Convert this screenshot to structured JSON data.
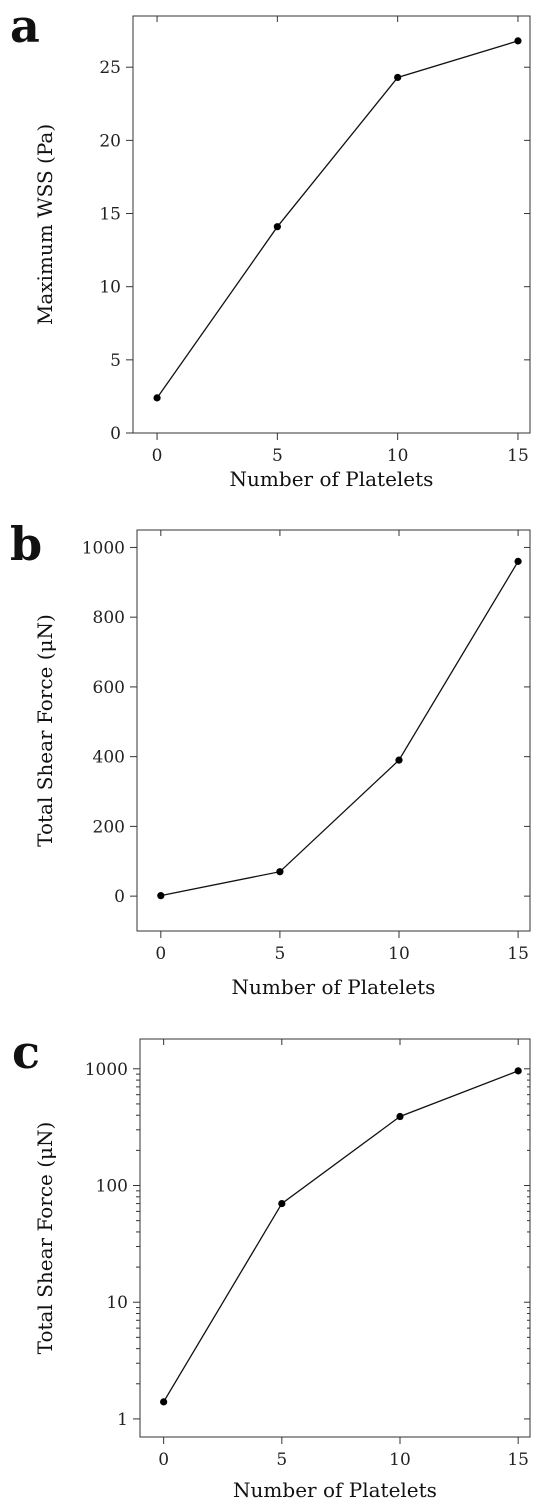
{
  "chart_data": [
    {
      "type": "line",
      "panel_label": "a",
      "xlabel": "Number of Platelets",
      "ylabel": "Maximum WSS (Pa)",
      "x": [
        0,
        5,
        10,
        15
      ],
      "y": [
        2.4,
        14.1,
        24.3,
        26.8
      ],
      "xlim": [
        -1,
        15.5
      ],
      "ylim": [
        0,
        28.5
      ],
      "xticks": [
        0,
        5,
        10,
        15
      ],
      "yticks": [
        0,
        5,
        10,
        15,
        20,
        25
      ],
      "xtick_labels": [
        "0",
        "5",
        "10",
        "15"
      ],
      "ytick_labels": [
        "0",
        "5",
        "10",
        "15",
        "20",
        "25"
      ],
      "yscale": "linear",
      "grid": false,
      "marker": "circle"
    },
    {
      "type": "line",
      "panel_label": "b",
      "xlabel": "Number of Platelets",
      "ylabel": "Total Shear Force (μN)",
      "x": [
        0,
        5,
        10,
        15
      ],
      "y": [
        1.4,
        70,
        390,
        960
      ],
      "xlim": [
        -1,
        15.5
      ],
      "ylim": [
        -100,
        1050
      ],
      "xticks": [
        0,
        5,
        10,
        15
      ],
      "yticks": [
        0,
        200,
        400,
        600,
        800,
        1000
      ],
      "xtick_labels": [
        "0",
        "5",
        "10",
        "15"
      ],
      "ytick_labels": [
        "0",
        "200",
        "400",
        "600",
        "800",
        "1000"
      ],
      "yscale": "linear",
      "grid": false,
      "marker": "circle"
    },
    {
      "type": "line",
      "panel_label": "c",
      "xlabel": "Number of Platelets",
      "ylabel": "Total Shear Force (μN)",
      "x": [
        0,
        5,
        10,
        15
      ],
      "y": [
        1.4,
        70,
        390,
        960
      ],
      "xlim": [
        -1,
        15.5
      ],
      "ylim": [
        0.7,
        1800
      ],
      "xticks": [
        0,
        5,
        10,
        15
      ],
      "yticks": [
        1,
        10,
        100,
        1000
      ],
      "xtick_labels": [
        "0",
        "5",
        "10",
        "15"
      ],
      "ytick_labels": [
        "1",
        "10",
        "100",
        "1000"
      ],
      "yscale": "log",
      "grid": false,
      "marker": "circle"
    }
  ]
}
